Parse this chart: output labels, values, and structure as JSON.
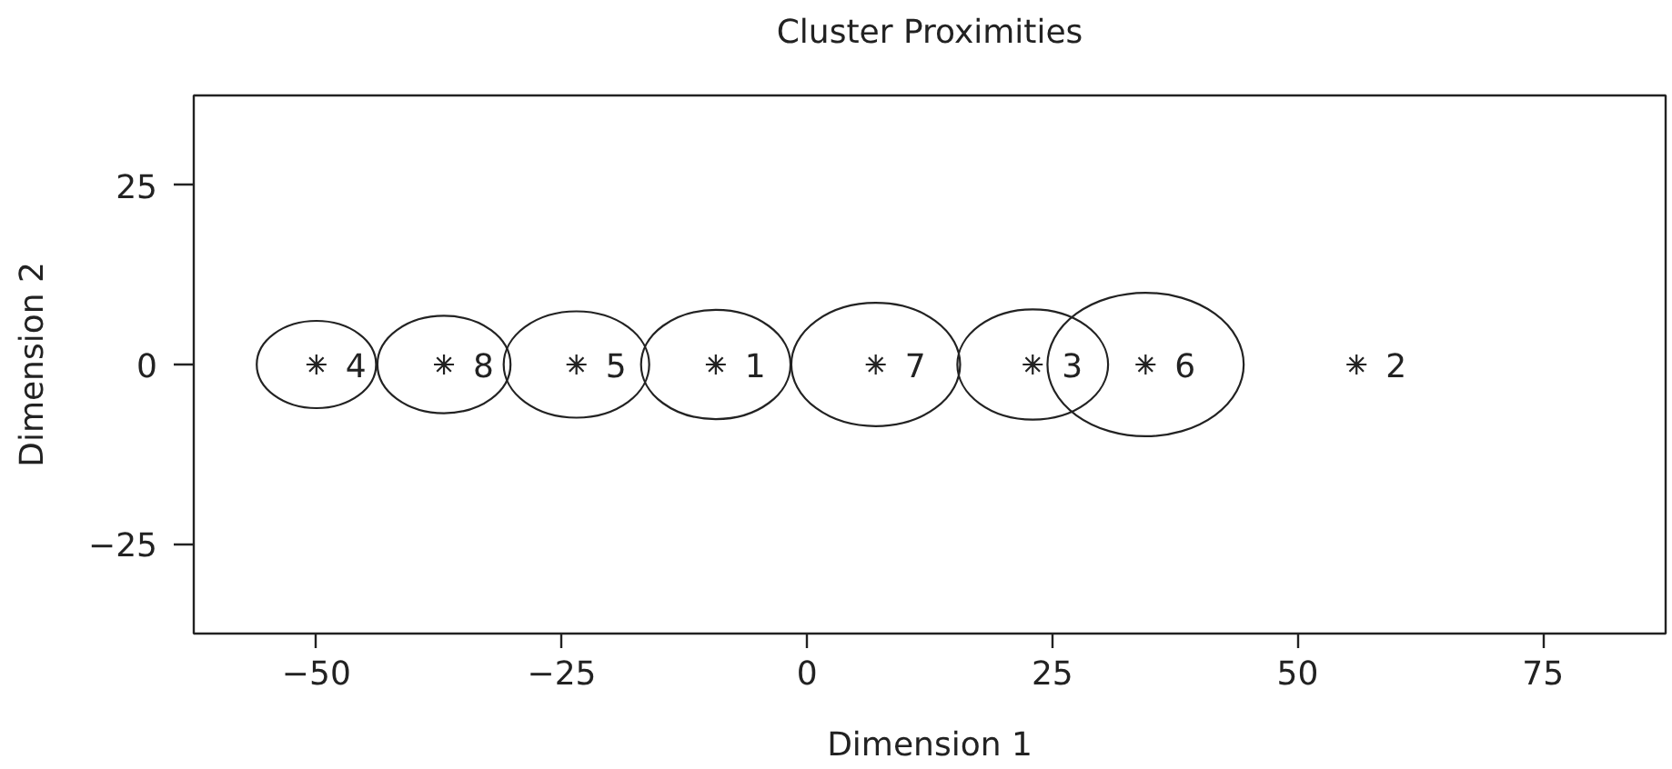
{
  "chart_data": {
    "type": "bubble",
    "title": "Cluster Proximities",
    "xlabel": "Dimension 1",
    "ylabel": "Dimension 2",
    "xlim": [
      -62.5,
      87.5
    ],
    "xticks": [
      -50,
      -25,
      0,
      25,
      50,
      75
    ],
    "ylim": [
      -37.5,
      37.5
    ],
    "yticks": [
      -25,
      0,
      25
    ],
    "marker": "cross",
    "series": [
      {
        "name": "1",
        "color": "#222222",
        "x": [
          -9.3
        ],
        "values": [
          0
        ],
        "sizes": [
          0.58
        ]
      },
      {
        "name": "2",
        "color": "#222222",
        "type": "scatter",
        "x": [
          56
        ],
        "values": [
          0
        ]
      },
      {
        "name": "3",
        "color": "#222222",
        "x": [
          23
        ],
        "values": [
          0
        ],
        "sizes": [
          0.59
        ]
      },
      {
        "name": "4",
        "color": "#222222",
        "x": [
          -50
        ],
        "values": [
          0
        ],
        "sizes": [
          0.37
        ]
      },
      {
        "name": "5",
        "color": "#222222",
        "x": [
          -23.5
        ],
        "values": [
          0
        ],
        "sizes": [
          0.55
        ]
      },
      {
        "name": "6",
        "color": "#222222",
        "x": [
          34.5
        ],
        "values": [
          0
        ],
        "sizes": [
          1
        ]
      },
      {
        "name": "7",
        "color": "#222222",
        "x": [
          7
        ],
        "values": [
          0
        ],
        "sizes": [
          0.74
        ]
      },
      {
        "name": "8",
        "color": "#222222",
        "x": [
          -37
        ],
        "values": [
          0
        ],
        "sizes": [
          0.46
        ]
      }
    ]
  }
}
